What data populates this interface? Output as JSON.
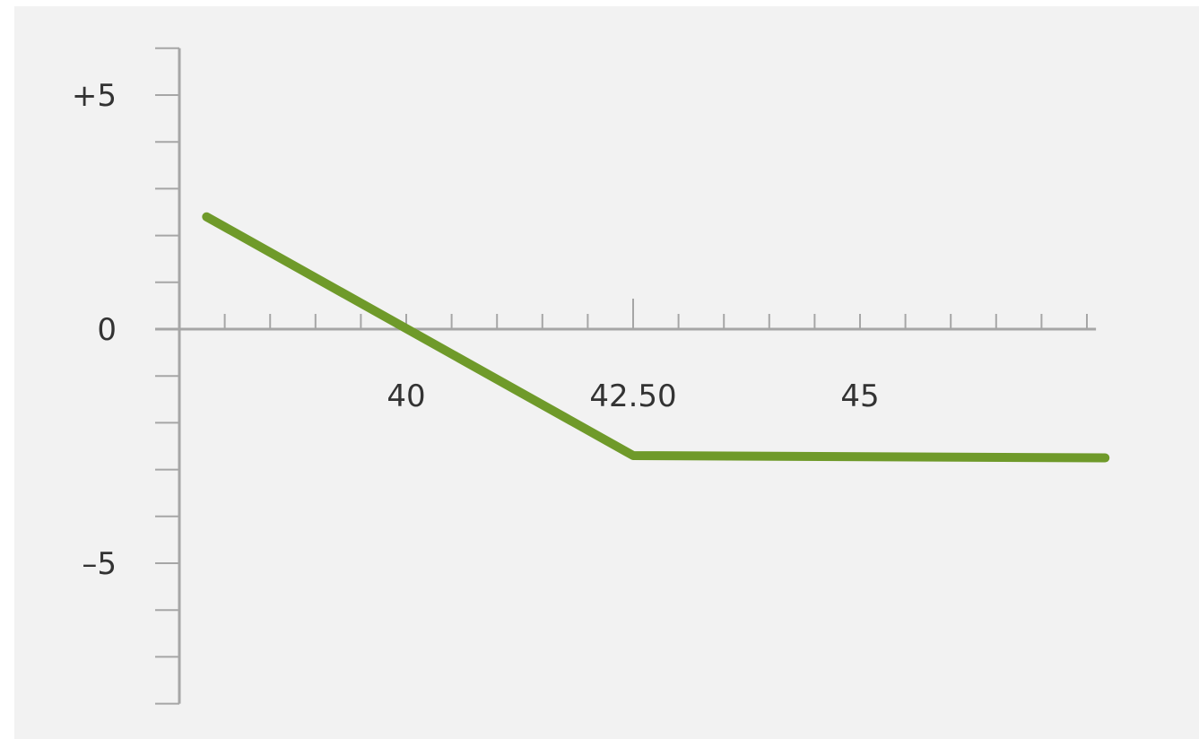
{
  "chart_data": {
    "type": "line",
    "title": "",
    "xlabel": "",
    "ylabel": "",
    "x_tick_labels": [
      {
        "value": 40,
        "label": "40"
      },
      {
        "value": 42.5,
        "label": "42.50"
      },
      {
        "value": 45,
        "label": "45"
      }
    ],
    "y_tick_labels": [
      {
        "value": 5,
        "label": "+5"
      },
      {
        "value": 0,
        "label": "0"
      },
      {
        "value": -5,
        "label": "–5"
      }
    ],
    "xlim": [
      37.5,
      47.5
    ],
    "ylim": [
      -8,
      6
    ],
    "x_minor_step": 0.5,
    "y_minor_step": 1,
    "grid": false,
    "series": [
      {
        "color": "#6f9a2a",
        "points": [
          {
            "x": 37.8,
            "y": 2.4
          },
          {
            "x": 42.5,
            "y": -2.7
          },
          {
            "x": 47.7,
            "y": -2.75
          }
        ]
      }
    ],
    "colors": {
      "axis": "#a6a6a6",
      "background": "#f2f2f2",
      "line": "#6f9a2a",
      "text": "#333333"
    }
  }
}
